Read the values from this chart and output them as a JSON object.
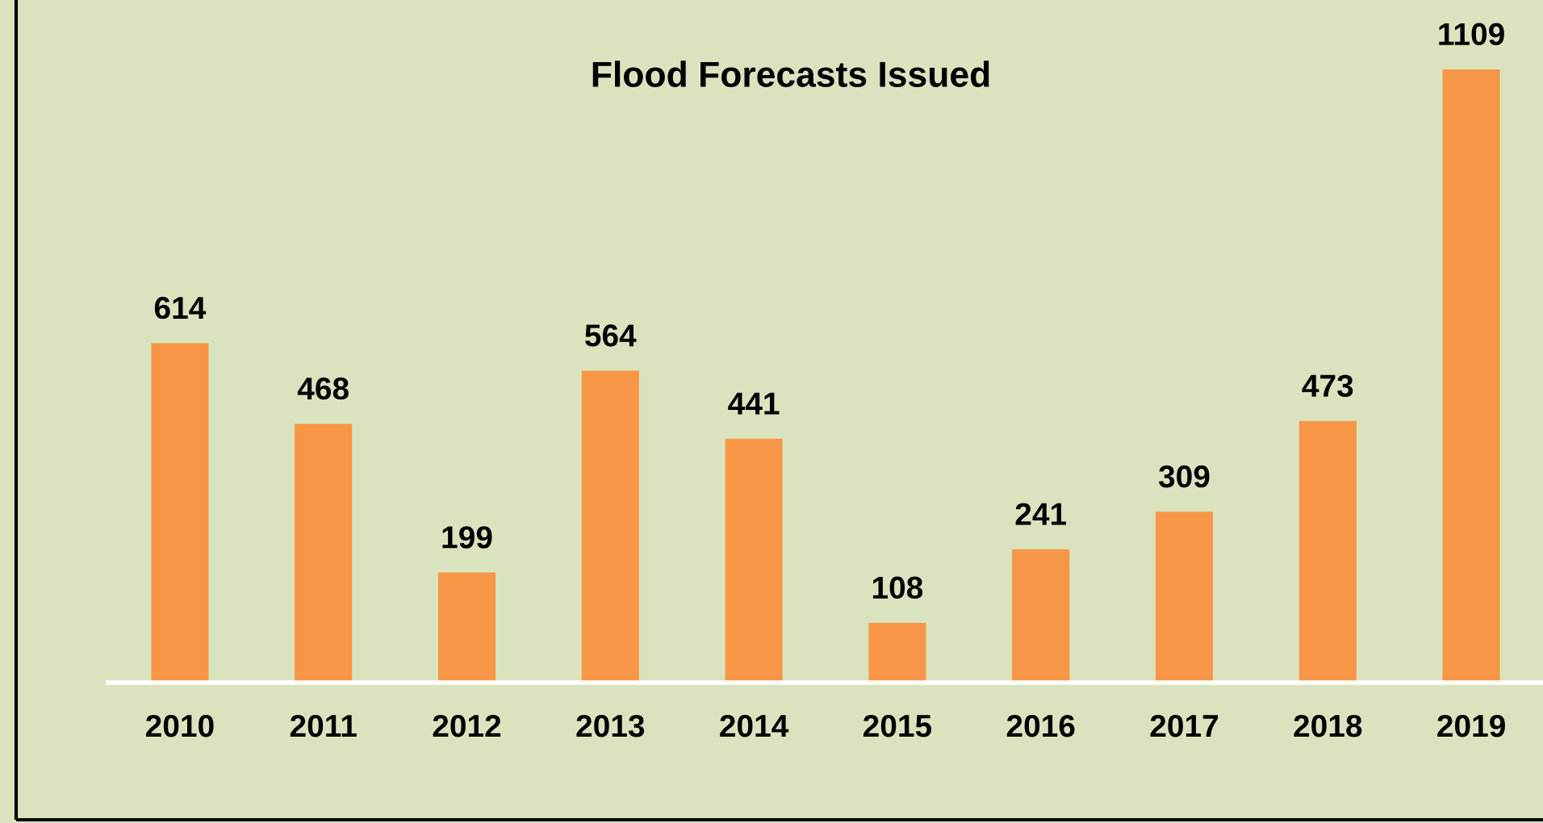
{
  "chart_data": {
    "type": "bar",
    "title": "Flood Forecasts Issued",
    "categories": [
      "2010",
      "2011",
      "2012",
      "2013",
      "2014",
      "2015",
      "2016",
      "2017",
      "2018",
      "2019"
    ],
    "values": [
      614,
      468,
      199,
      564,
      441,
      108,
      241,
      309,
      473,
      1109
    ],
    "color": "#f79646",
    "data_labels": true,
    "grid": false,
    "legend": false
  }
}
